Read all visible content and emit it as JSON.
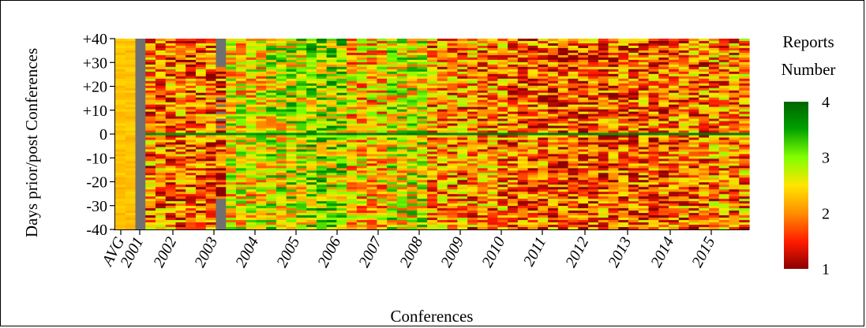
{
  "chart_data": {
    "type": "heatmap",
    "title": "",
    "xlabel": "Conferences",
    "ylabel": "Days prior/post Conferences",
    "x_tick_labels": [
      "AVG",
      "2001",
      "2002",
      "2003",
      "2004",
      "2005",
      "2006",
      "2007",
      "2008",
      "2009",
      "2010",
      "2011",
      "2012",
      "2013",
      "2014",
      "2015"
    ],
    "y_tick_labels": [
      "+40",
      "+30",
      "+20",
      "+10",
      "0",
      "-10",
      "-20",
      "-30",
      "-40"
    ],
    "y_tick_values": [
      40,
      30,
      20,
      10,
      0,
      -10,
      -20,
      -30,
      -40
    ],
    "ylim": [
      -40,
      40
    ],
    "rows_days": 81,
    "columns_count": 63,
    "avg_column_present": true,
    "missing_data_color": "#707070",
    "colorbar": {
      "title_line1": "Reports",
      "title_line2": "Number",
      "range": [
        1,
        4
      ],
      "tick_labels": [
        "4",
        "3",
        "2",
        "1"
      ],
      "tick_values": [
        4,
        3,
        2,
        1
      ],
      "colors": [
        "#8b0000",
        "#ff1a00",
        "#ff8c00",
        "#ffe600",
        "#7fff00",
        "#00a000",
        "#006400"
      ]
    },
    "column_zones": [
      {
        "year": "AVG",
        "level": 2.3
      },
      {
        "year": "2001",
        "level": 1.9
      },
      {
        "year": "2002",
        "level": 1.8
      },
      {
        "year": "2003",
        "level": 2.5
      },
      {
        "year": "2004",
        "level": 2.7
      },
      {
        "year": "2005",
        "level": 2.9
      },
      {
        "year": "2006",
        "level": 2.3
      },
      {
        "year": "2007",
        "level": 2.6
      },
      {
        "year": "2008",
        "level": 2.0
      },
      {
        "year": "2009",
        "level": 2.0
      },
      {
        "year": "2010",
        "level": 1.8
      },
      {
        "year": "2011",
        "level": 1.7
      },
      {
        "year": "2012",
        "level": 1.8
      },
      {
        "year": "2013",
        "level": 1.8
      },
      {
        "year": "2014",
        "level": 1.9
      },
      {
        "year": "2015",
        "level": 2.0
      }
    ]
  }
}
